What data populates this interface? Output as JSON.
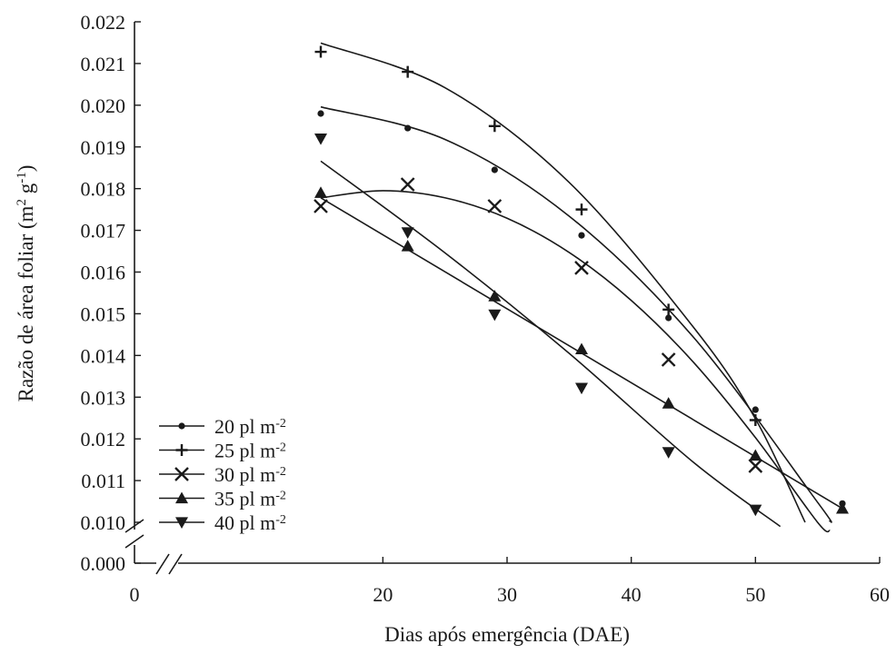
{
  "chart_data": {
    "type": "scatter",
    "xlabel": "Dias após emergência (DAE)",
    "ylabel": "Razão de área foliar (m² g⁻¹)",
    "ylabel_parts": {
      "main": "Razão de área foliar (m",
      "sup1": "2",
      "mid": " g",
      "sup2": "-1",
      "end": ")"
    },
    "xlim": [
      0,
      60
    ],
    "ylim": [
      0.01,
      0.022
    ],
    "y_axis_break": true,
    "x_ticks": [
      "0",
      "20",
      "30",
      "40",
      "50",
      "60"
    ],
    "y_ticks": [
      "0.022",
      "0.021",
      "0.020",
      "0.019",
      "0.018",
      "0.017",
      "0.016",
      "0.015",
      "0.014",
      "0.013",
      "0.012",
      "0.011",
      "0.010",
      "0.000"
    ],
    "legend_position": "bottom-left",
    "x": [
      15,
      22,
      29,
      36,
      43,
      50,
      57
    ],
    "series": [
      {
        "name": "20 pl m-2",
        "label_main": "20 pl m",
        "label_sup": "-2",
        "marker": "circle",
        "values": [
          0.0198,
          0.01945,
          0.01845,
          0.01688,
          0.0149,
          0.0127,
          0.01045
        ],
        "fit": [
          [
            15,
            0.01996
          ],
          [
            25,
            0.01918
          ],
          [
            35,
            0.01734
          ],
          [
            45,
            0.01444
          ],
          [
            55,
            0.01048
          ],
          [
            56,
            0.01002
          ]
        ]
      },
      {
        "name": "25 pl m-2",
        "label_main": "25 pl m",
        "label_sup": "-2",
        "marker": "plus",
        "values": [
          0.02128,
          0.0208,
          0.0195,
          0.0175,
          0.0151,
          0.01245,
          null
        ],
        "fit": [
          [
            15,
            0.02149
          ],
          [
            25,
            0.02042
          ],
          [
            35,
            0.01815
          ],
          [
            45,
            0.01468
          ],
          [
            50,
            0.01248
          ],
          [
            54,
            0.01
          ]
        ]
      },
      {
        "name": "30 pl m-2",
        "label_main": "30 pl m",
        "label_sup": "-2",
        "marker": "x",
        "values": [
          0.01758,
          0.0181,
          0.01758,
          0.0161,
          0.0139,
          0.01135,
          null
        ],
        "fit": [
          [
            15,
            0.01778
          ],
          [
            20,
            0.01795
          ],
          [
            25,
            0.01778
          ],
          [
            30,
            0.01729
          ],
          [
            35,
            0.01647
          ],
          [
            40,
            0.01532
          ],
          [
            45,
            0.01384
          ],
          [
            50,
            0.01203
          ],
          [
            55,
            0.01
          ],
          [
            56,
            0.0098
          ]
        ]
      },
      {
        "name": "35 pl m-2",
        "label_main": "35 pl m",
        "label_sup": "-2",
        "marker": "triangle-up",
        "values": [
          0.0179,
          0.01662,
          0.01542,
          0.01415,
          0.01285,
          0.0116,
          0.01033
        ],
        "fit": [
          [
            15,
            0.01778
          ],
          [
            57,
            0.01033
          ]
        ]
      },
      {
        "name": "40 pl m-2",
        "label_main": "40 pl m",
        "label_sup": "-2",
        "marker": "triangle-down",
        "values": [
          0.0192,
          0.01695,
          0.01498,
          0.01322,
          0.01168,
          0.0103,
          null
        ],
        "fit": [
          [
            15,
            0.01866
          ],
          [
            25,
            0.01646
          ],
          [
            35,
            0.01405
          ],
          [
            45,
            0.01144
          ],
          [
            52,
            0.0099
          ]
        ]
      }
    ]
  }
}
